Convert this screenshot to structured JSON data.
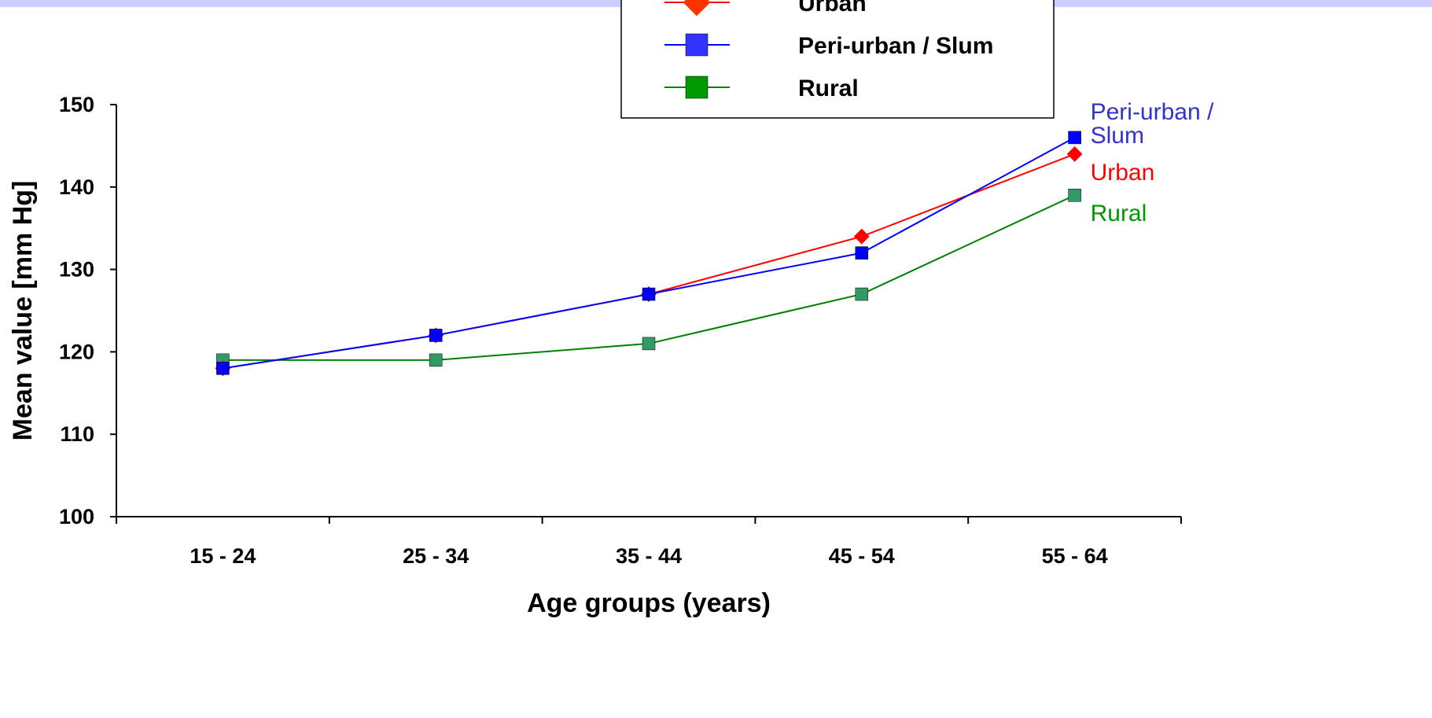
{
  "chart_data": {
    "type": "line",
    "categories": [
      "15 - 24",
      "25 - 34",
      "35 - 44",
      "45 - 54",
      "55 - 64"
    ],
    "series": [
      {
        "name": "Urban",
        "values": [
          118,
          122,
          127,
          134,
          144
        ],
        "line_color": "#ff0000",
        "marker_color": "#ff0000",
        "legend_marker_color": "#ff3300",
        "marker": "diamond",
        "end_label": "Urban",
        "end_label_color": "#ff0000"
      },
      {
        "name": "Peri-urban / Slum",
        "values": [
          118,
          122,
          127,
          132,
          146
        ],
        "line_color": "#0000ff",
        "marker_color": "#0000ff",
        "legend_marker_color": "#3333ff",
        "marker": "square",
        "end_label_lines": [
          "Peri-urban /",
          "Slum"
        ],
        "end_label_color": "#3333cc"
      },
      {
        "name": "Rural",
        "values": [
          119,
          119,
          121,
          127,
          139
        ],
        "line_color": "#008000",
        "marker_color": "#339966",
        "legend_marker_color": "#009900",
        "marker": "square",
        "end_label": "Rural",
        "end_label_color": "#009900"
      }
    ],
    "xlabel": "Age groups (years)",
    "ylabel": "Mean value [mm Hg]",
    "ylim": [
      100,
      150
    ],
    "yticks": [
      "100",
      "110",
      "120",
      "130",
      "140",
      "150"
    ],
    "grid": false,
    "legend_position": "top-right",
    "top_band_color": "#ccccff"
  }
}
